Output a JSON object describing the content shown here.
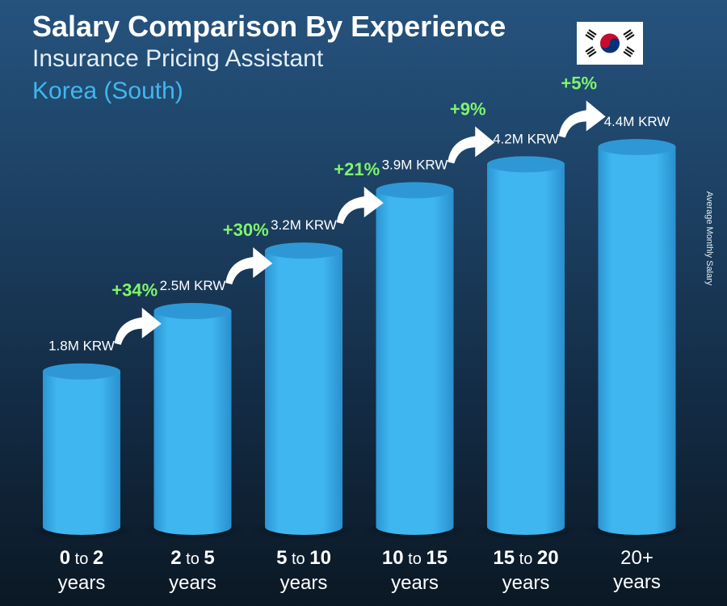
{
  "header": {
    "title": "Salary Comparison By Experience",
    "subtitle": "Insurance Pricing Assistant",
    "location": "Korea (South)"
  },
  "flag_icon": "south-korea-flag-icon",
  "colors": {
    "bar": "#3fb6f0",
    "bar_top": "#2e98d6",
    "increase": "#7ef56b",
    "title": "#ffffff",
    "location": "#3fb8ee"
  },
  "chart_data": {
    "type": "bar",
    "categories": [
      "0 to 2 years",
      "2 to 5 years",
      "5 to 10 years",
      "10 to 15 years",
      "15 to 20 years",
      "20+ years"
    ],
    "category_parts": [
      {
        "from": "0",
        "to_word": "to",
        "until": "2",
        "unit": "years"
      },
      {
        "from": "2",
        "to_word": "to",
        "until": "5",
        "unit": "years"
      },
      {
        "from": "5",
        "to_word": "to",
        "until": "10",
        "unit": "years"
      },
      {
        "from": "10",
        "to_word": "to",
        "until": "15",
        "unit": "years"
      },
      {
        "from": "15",
        "to_word": "to",
        "until": "20",
        "unit": "years"
      },
      {
        "from": "20+",
        "to_word": "",
        "until": "",
        "unit": "years"
      }
    ],
    "values": [
      1.8,
      2.5,
      3.2,
      3.9,
      4.2,
      4.4
    ],
    "value_labels": [
      "1.8M KRW",
      "2.5M KRW",
      "3.2M KRW",
      "3.9M KRW",
      "4.2M KRW",
      "4.4M KRW"
    ],
    "increases": [
      "+34%",
      "+30%",
      "+21%",
      "+9%",
      "+5%"
    ],
    "unit": "M KRW",
    "ylabel": "Average Monthly Salary",
    "ylim": [
      0,
      4.4
    ],
    "grid": false,
    "legend": "none"
  }
}
